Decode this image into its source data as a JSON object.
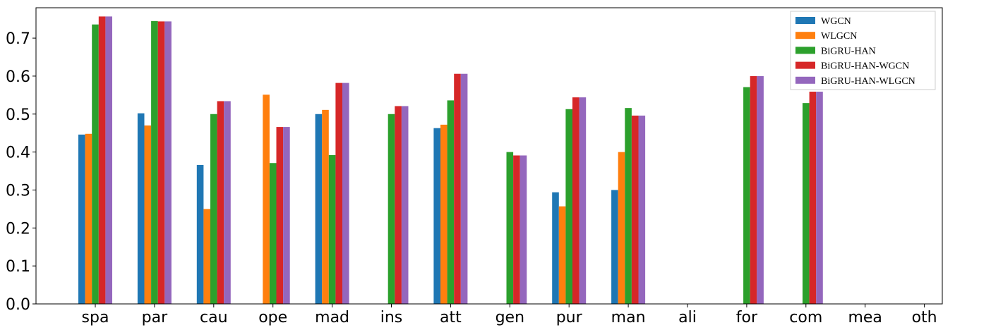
{
  "chart_data": {
    "type": "bar",
    "categories": [
      "spa",
      "par",
      "cau",
      "ope",
      "mad",
      "ins",
      "att",
      "gen",
      "pur",
      "man",
      "ali",
      "for",
      "com",
      "mea",
      "oth"
    ],
    "ylim": [
      0,
      0.78
    ],
    "yticks": [
      "0.0",
      "0.1",
      "0.2",
      "0.3",
      "0.4",
      "0.5",
      "0.6",
      "0.7"
    ],
    "grid": false,
    "legend_position": "top-right",
    "series": [
      {
        "name": "WGCN",
        "color": "#1f77b4",
        "values": [
          0.446,
          0.502,
          0.366,
          0,
          0.5,
          0,
          0.463,
          0,
          0.294,
          0.3,
          0,
          0,
          0,
          0,
          0
        ]
      },
      {
        "name": "WLGCN",
        "color": "#ff7f0e",
        "values": [
          0.448,
          0.47,
          0.25,
          0.551,
          0.511,
          0,
          0.472,
          0,
          0.257,
          0.4,
          0,
          0,
          0,
          0,
          0
        ]
      },
      {
        "name": "BiGRU-HAN",
        "color": "#2ca02c",
        "values": [
          0.736,
          0.745,
          0.5,
          0.371,
          0.392,
          0.5,
          0.536,
          0.4,
          0.513,
          0.516,
          0,
          0.571,
          0.529,
          0,
          0
        ]
      },
      {
        "name": "BiGRU-HAN-WGCN",
        "color": "#d62728",
        "values": [
          0.757,
          0.744,
          0.534,
          0.466,
          0.582,
          0.521,
          0.606,
          0.391,
          0.544,
          0.496,
          0,
          0.6,
          0.559,
          0,
          0
        ]
      },
      {
        "name": "BiGRU-HAN-WLGCN",
        "color": "#9467bd",
        "values": [
          0.757,
          0.744,
          0.534,
          0.466,
          0.582,
          0.521,
          0.606,
          0.391,
          0.544,
          0.496,
          0,
          0.6,
          0.559,
          0,
          0
        ]
      }
    ]
  }
}
